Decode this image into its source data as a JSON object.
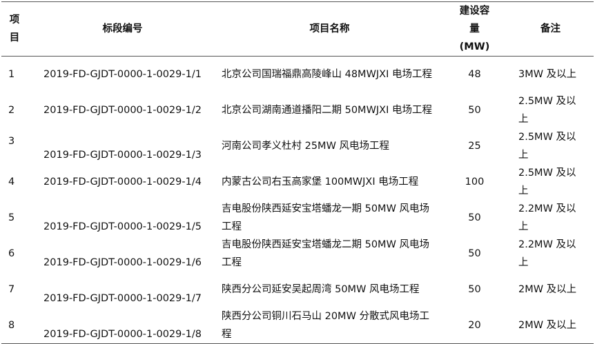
{
  "table": {
    "header": [
      "项目",
      "标段编号",
      "项目名称",
      "建设容量(MW)",
      "备注"
    ],
    "rows": [
      [
        1,
        "2019-FD-GJDT-0000-1-0029-1/1",
        "北京公司国瑞福鼎高陵峰山 48MWJXI 电场工程",
        48,
        "3MW 及以上"
      ],
      [
        2,
        "2019-FD-GJDT-0000-1-0029-1/2",
        "北京公司湖南通道播阳二期 50MWJXI 电场工程",
        50,
        "2.5MW 及以上"
      ],
      [
        3,
        "2019-FD-GJDT-0000-1-0029-1/3",
        "河南公司孝义杜村 25MW 风电场工程",
        25,
        "2.5MW 及以上"
      ],
      [
        4,
        "2019-FD-GJDT-0000-1-0029-1/4",
        "内蒙古公司右玉高家堡 100MWJXI 电场工程",
        100,
        "2.5MW 及以上"
      ],
      [
        5,
        "2019-FD-GJDT-0000-1-0029-1/5",
        "吉电股份陕西延安宝塔蟠龙一期 50MW 风电场工程",
        50,
        "2.2MW 及以上"
      ],
      [
        6,
        "2019-FD-GJDT-0000-1-0029-1/6",
        "吉电股份陕西延安宝塔蟠龙二期 50MW 风电场工程",
        50,
        "2.2MW 及以上"
      ],
      [
        7,
        "2019-FD-GJDT-0000-1-0029-1/7",
        "陕西分公司延安吴起周湾 50MW 风电场工程",
        50,
        "2MW 及以上"
      ],
      [
        8,
        "2019-FD-GJDT-0000-1-0029-1/8",
        "陕西分公司铜川石马山 20MW 分散式风电场工程",
        20,
        "2MW 及以上"
      ]
    ]
  }
}
